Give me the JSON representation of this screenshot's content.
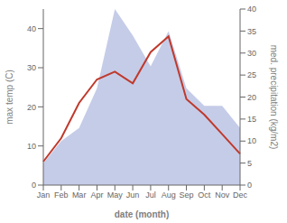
{
  "chart_data": {
    "type": "line",
    "categories": [
      "Jan",
      "Feb",
      "Mar",
      "Apr",
      "May",
      "Jun",
      "Jul",
      "Aug",
      "Sep",
      "Oct",
      "Nov",
      "Dec"
    ],
    "xlabel": "date (month)",
    "ylabel": "max temp (C)",
    "y2label": "med. precipitation (kg/m2)",
    "ylim": [
      0,
      45
    ],
    "yticks": [
      0,
      10,
      20,
      30,
      40
    ],
    "y2lim": [
      0,
      40
    ],
    "y2ticks": [
      0,
      5,
      10,
      15,
      20,
      25,
      30,
      35,
      40
    ],
    "grid": false,
    "series": [
      {
        "type": "area",
        "axis": "y2",
        "color": "#c5cce8",
        "values": [
          5,
          10,
          13,
          22,
          40,
          34,
          27,
          35,
          22,
          18,
          18,
          13
        ]
      },
      {
        "type": "line",
        "axis": "y",
        "color": "#c0392b",
        "values": [
          6,
          12,
          21,
          27,
          29,
          26,
          34,
          38,
          22,
          18,
          13,
          8
        ]
      }
    ]
  }
}
